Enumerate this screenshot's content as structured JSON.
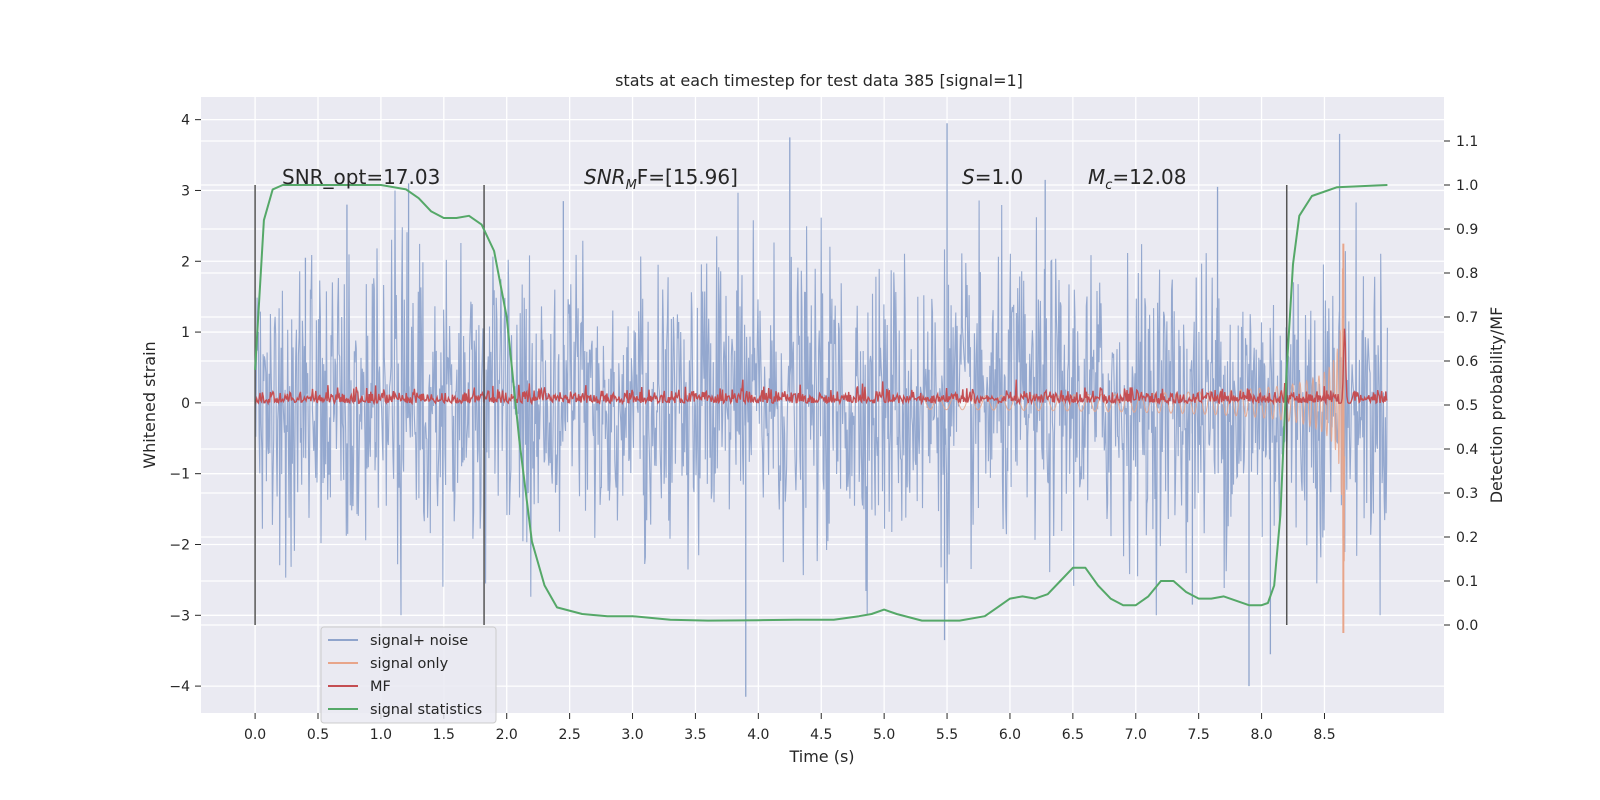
{
  "chart_data": {
    "type": "line",
    "title": "stats at each timestep for test data 385 [signal=1]",
    "xlabel": "Time (s)",
    "ylabel": "Whitened strain",
    "y2label": "Detection probability/MF",
    "xlim": [
      -0.43,
      9.45
    ],
    "ylim": [
      -4.38,
      4.32
    ],
    "y2lim": [
      -0.2,
      1.2
    ],
    "xticks": [
      "0.0",
      "0.5",
      "1.0",
      "1.5",
      "2.0",
      "2.5",
      "3.0",
      "3.5",
      "4.0",
      "4.5",
      "5.0",
      "5.5",
      "6.0",
      "6.5",
      "7.0",
      "7.5",
      "8.0",
      "8.5"
    ],
    "yticks": [
      "4",
      "3",
      "2",
      "1",
      "0",
      "−1",
      "−2",
      "−3",
      "−4"
    ],
    "y2ticks": [
      "1.1",
      "1.0",
      "0.9",
      "0.8",
      "0.7",
      "0.6",
      "0.5",
      "0.4",
      "0.3",
      "0.2",
      "0.1",
      "0.0"
    ],
    "grid": true,
    "legend_position": "lower-left",
    "annotations": {
      "snr_opt": "SNR_opt=17.03",
      "snr_mf_main": "SNR",
      "snr_mf_sub": "M",
      "snr_mf_rest": "F=[15.96]",
      "s_var": "S",
      "s_rest": "=1.0",
      "mc_var": "M",
      "mc_sub": "c",
      "mc_rest": "=12.08"
    },
    "vertical_markers_x": [
      0.0,
      1.82,
      8.2
    ],
    "series": [
      {
        "name": "signal+ noise",
        "color": "#8fa4cc",
        "x_range": [
          0.0,
          9.0
        ],
        "amplitude_std": 1.0,
        "upper_peaks": [
          [
            0.4,
            2.05
          ],
          [
            0.73,
            2.8
          ],
          [
            1.22,
            3.1
          ],
          [
            2.45,
            2.85
          ],
          [
            4.25,
            3.75
          ],
          [
            5.5,
            3.95
          ],
          [
            6.28,
            3.15
          ],
          [
            7.65,
            3.05
          ],
          [
            8.62,
            3.8
          ]
        ],
        "lower_peaks": [
          [
            3.9,
            -4.15
          ],
          [
            7.9,
            -4.0
          ],
          [
            7.45,
            -2.85
          ],
          [
            5.48,
            -3.35
          ],
          [
            8.07,
            -3.55
          ]
        ]
      },
      {
        "name": "signal only",
        "color": "#e8a58a",
        "x_range": [
          5.3,
          8.66
        ],
        "envelope_max": 2.25,
        "merger_time": 8.65
      },
      {
        "name": "MF",
        "color": "#c44e52",
        "x_range": [
          0.0,
          9.0
        ],
        "baseline": 0.5,
        "noise_amp": 0.015,
        "peak": [
          8.66,
          0.67
        ]
      },
      {
        "name": "signal statistics",
        "color": "#55a868",
        "x": [
          0.0,
          0.07,
          0.14,
          0.22,
          0.35,
          0.6,
          1.0,
          1.2,
          1.3,
          1.4,
          1.5,
          1.6,
          1.7,
          1.8,
          1.9,
          2.0,
          2.1,
          2.2,
          2.3,
          2.4,
          2.6,
          2.8,
          3.0,
          3.3,
          3.6,
          4.0,
          4.3,
          4.6,
          4.8,
          4.9,
          5.0,
          5.1,
          5.3,
          5.6,
          5.8,
          5.9,
          6.0,
          6.1,
          6.2,
          6.3,
          6.4,
          6.5,
          6.6,
          6.7,
          6.8,
          6.9,
          7.0,
          7.1,
          7.2,
          7.3,
          7.4,
          7.5,
          7.6,
          7.7,
          7.8,
          7.9,
          8.0,
          8.05,
          8.1,
          8.15,
          8.2,
          8.25,
          8.3,
          8.4,
          8.6,
          9.0
        ],
        "y": [
          0.58,
          0.92,
          0.99,
          1.0,
          1.0,
          1.0,
          1.0,
          0.99,
          0.97,
          0.94,
          0.925,
          0.925,
          0.93,
          0.91,
          0.85,
          0.7,
          0.42,
          0.19,
          0.09,
          0.04,
          0.025,
          0.02,
          0.02,
          0.012,
          0.01,
          0.011,
          0.012,
          0.012,
          0.02,
          0.025,
          0.035,
          0.025,
          0.01,
          0.01,
          0.02,
          0.04,
          0.06,
          0.065,
          0.06,
          0.07,
          0.1,
          0.13,
          0.13,
          0.09,
          0.06,
          0.045,
          0.045,
          0.065,
          0.1,
          0.1,
          0.075,
          0.06,
          0.06,
          0.065,
          0.055,
          0.045,
          0.045,
          0.05,
          0.09,
          0.25,
          0.58,
          0.82,
          0.93,
          0.975,
          0.995,
          1.0
        ]
      }
    ]
  }
}
